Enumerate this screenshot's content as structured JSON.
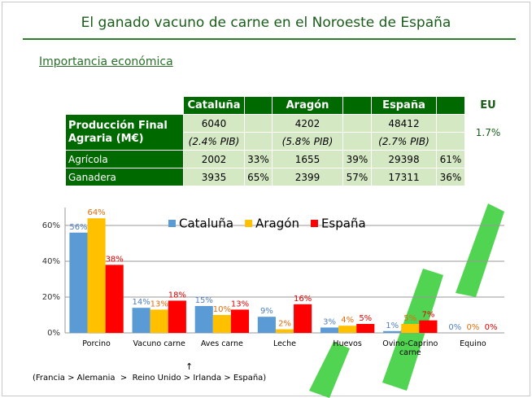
{
  "header": {
    "title": "El ganado vacuno de carne en el Noroeste de España",
    "subtitle": "Importancia económica"
  },
  "table": {
    "header": [
      "",
      "Cataluña",
      "",
      "Aragón",
      "",
      "España",
      "",
      "EU"
    ],
    "production": {
      "label": "Producción Final Agraria (M€)",
      "values": [
        "6040",
        "4202",
        "48412"
      ],
      "pib": [
        "(2.4% PIB)",
        "(5.8% PIB)",
        "(2.7% PIB)"
      ],
      "eu": "1.7%"
    },
    "rows": [
      [
        "Agrícola",
        "2002",
        "33%",
        "1655",
        "39%",
        "29398",
        "61%"
      ],
      [
        "Ganadera",
        "3935",
        "65%",
        "2399",
        "57%",
        "17311",
        "36%"
      ]
    ]
  },
  "chart_data": {
    "type": "bar",
    "categories": [
      "Porcino",
      "Vacuno carne",
      "Aves carne",
      "Leche",
      "Huevos",
      "Ovino-Caprino carne",
      "Equino"
    ],
    "series": [
      {
        "name": "Cataluña",
        "color": "#5b9bd5",
        "label_color": "#4f7fbf",
        "values": [
          56,
          14,
          15,
          9,
          3,
          1,
          0
        ],
        "value_labels": [
          "56%",
          "14%",
          "15%",
          "9%",
          "3%",
          "1%",
          "0%"
        ]
      },
      {
        "name": "Aragón",
        "color": "#ffc000",
        "label_color": "#e36c0a",
        "values": [
          64,
          13,
          10,
          2,
          4,
          5,
          0
        ],
        "value_labels": [
          "64%",
          "13%",
          "10%",
          "2%",
          "4%",
          "5%",
          "0%"
        ]
      },
      {
        "name": "España",
        "color": "#ff0000",
        "label_color": "#e00000",
        "values": [
          38,
          18,
          13,
          16,
          5,
          7,
          0
        ],
        "value_labels": [
          "38%",
          "18%",
          "13%",
          "16%",
          "5%",
          "7%",
          "0%"
        ]
      }
    ],
    "ylim": [
      0,
      70
    ],
    "yticks": [
      {
        "value": 0,
        "label": "0%"
      },
      {
        "value": 20,
        "label": "20%"
      },
      {
        "value": 40,
        "label": "40%"
      },
      {
        "value": 60,
        "label": "60%"
      }
    ],
    "grid": true
  },
  "footnote": {
    "arrow": "↑",
    "text": "(Francia > Alemania  >  Reino Unido > Irlanda > España)"
  }
}
